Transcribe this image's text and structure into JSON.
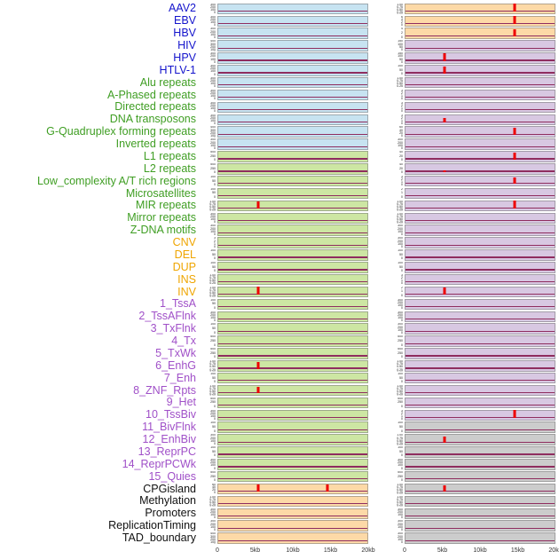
{
  "colors": {
    "groups": {
      "virus": "#1414cc",
      "repeat": "#3f9e23",
      "sv": "#efa500",
      "state": "#a050c8",
      "other": "#111111"
    },
    "panels": {
      "blue": "#c7e3f1",
      "green": "#cde6a3",
      "peach": "#fdd9a7",
      "lavender": "#d8c8e2",
      "gray": "#cccccc"
    },
    "baseline": "#8f2d5f",
    "spike": "#ee0000"
  },
  "chart_data": {
    "type": "line",
    "layout": "small multiples: 44 feature rows x 2 columns, signal around region 0-20kb",
    "x_axis": {
      "ticks": [
        "0",
        "5kb",
        "10kb",
        "15kb",
        "20kb"
      ],
      "range_kb": [
        0,
        20
      ]
    },
    "tick_sets": {
      "t300": [
        "300",
        "200",
        "100",
        "0"
      ],
      "t400": [
        "400",
        "300",
        "200",
        "100",
        "0"
      ],
      "t500": [
        "500",
        "250",
        "0"
      ],
      "t150": [
        "150",
        "100",
        "50",
        "0"
      ],
      "t100": [
        "100",
        "50",
        "0"
      ],
      "t60": [
        "60",
        "40",
        "20",
        "0"
      ],
      "t40": [
        "40",
        "20",
        "0"
      ],
      "t642": [
        "6",
        "4",
        "2",
        "0"
      ],
      "t420": [
        "4",
        "2",
        "0"
      ],
      "t321": [
        "3",
        "2",
        "1",
        "0"
      ],
      "t21": [
        "2",
        "1",
        "0"
      ],
      "tfrac": [
        "1.00",
        "0.75",
        "0.50",
        "0.25",
        "0.00"
      ]
    },
    "rows": [
      {
        "label": "AAV2",
        "group": "virus",
        "left": {
          "bg": "blue",
          "yticks": "t300",
          "spikes": []
        },
        "right": {
          "bg": "peach",
          "yticks": "tfrac",
          "spikes": [
            {
              "x_kb": 14.7,
              "h": 0.9
            }
          ]
        }
      },
      {
        "label": "EBV",
        "group": "virus",
        "left": {
          "bg": "blue",
          "yticks": "t300",
          "spikes": []
        },
        "right": {
          "bg": "peach",
          "yticks": "t642",
          "spikes": [
            {
              "x_kb": 14.7,
              "h": 0.85
            }
          ]
        }
      },
      {
        "label": "HBV",
        "group": "virus",
        "left": {
          "bg": "blue",
          "yticks": "t300",
          "spikes": []
        },
        "right": {
          "bg": "peach",
          "yticks": "t420",
          "spikes": [
            {
              "x_kb": 14.7,
              "h": 0.8
            }
          ]
        }
      },
      {
        "label": "HIV",
        "group": "virus",
        "left": {
          "bg": "blue",
          "yticks": "t400",
          "spikes": []
        },
        "right": {
          "bg": "lavender",
          "yticks": "t150",
          "spikes": []
        }
      },
      {
        "label": "HPV",
        "group": "virus",
        "left": {
          "bg": "blue",
          "yticks": "t300",
          "spikes": []
        },
        "right": {
          "bg": "lavender",
          "yticks": "t150",
          "spikes": [
            {
              "x_kb": 5.2,
              "h": 0.85
            }
          ]
        }
      },
      {
        "label": "HTLV-1",
        "group": "virus",
        "left": {
          "bg": "blue",
          "yticks": "t300",
          "spikes": []
        },
        "right": {
          "bg": "lavender",
          "yticks": "t100",
          "spikes": [
            {
              "x_kb": 5.2,
              "h": 0.75
            }
          ]
        }
      },
      {
        "label": "Alu repeats",
        "group": "repeat",
        "left": {
          "bg": "blue",
          "yticks": "t300",
          "spikes": []
        },
        "right": {
          "bg": "lavender",
          "yticks": "tfrac",
          "spikes": []
        }
      },
      {
        "label": "A-Phased repeats",
        "group": "repeat",
        "left": {
          "bg": "blue",
          "yticks": "t300",
          "spikes": []
        },
        "right": {
          "bg": "lavender",
          "yticks": "t321",
          "spikes": []
        }
      },
      {
        "label": "Directed repeats",
        "group": "repeat",
        "left": {
          "bg": "blue",
          "yticks": "t300",
          "spikes": []
        },
        "right": {
          "bg": "lavender",
          "yticks": "t321",
          "spikes": []
        }
      },
      {
        "label": "DNA transposons",
        "group": "repeat",
        "left": {
          "bg": "blue",
          "yticks": "t300",
          "spikes": []
        },
        "right": {
          "bg": "lavender",
          "yticks": "t321",
          "spikes": [
            {
              "x_kb": 5.2,
              "h": 0.45
            }
          ]
        }
      },
      {
        "label": "G-Quadruplex forming repeats",
        "group": "repeat",
        "left": {
          "bg": "blue",
          "yticks": "t400",
          "spikes": []
        },
        "right": {
          "bg": "lavender",
          "yticks": "t60",
          "spikes": [
            {
              "x_kb": 14.7,
              "h": 0.8
            }
          ]
        }
      },
      {
        "label": "Inverted repeats",
        "group": "repeat",
        "left": {
          "bg": "blue",
          "yticks": "t300",
          "spikes": []
        },
        "right": {
          "bg": "lavender",
          "yticks": "t300",
          "spikes": []
        }
      },
      {
        "label": "L1 repeats",
        "group": "repeat",
        "left": {
          "bg": "green",
          "yticks": "t500",
          "spikes": []
        },
        "right": {
          "bg": "lavender",
          "yticks": "t40",
          "spikes": [
            {
              "x_kb": 14.7,
              "h": 0.7
            }
          ]
        }
      },
      {
        "label": "L2 repeats",
        "group": "repeat",
        "left": {
          "bg": "green",
          "yticks": "t500",
          "spikes": []
        },
        "right": {
          "bg": "lavender",
          "yticks": "t40",
          "spikes": [
            {
              "x_kb": 5.2,
              "h": 0.15
            }
          ]
        }
      },
      {
        "label": "Low_complexity A/T rich regions",
        "group": "repeat",
        "left": {
          "bg": "green",
          "yticks": "t100",
          "spikes": []
        },
        "right": {
          "bg": "lavender",
          "yticks": "t321",
          "spikes": [
            {
              "x_kb": 14.7,
              "h": 0.75
            }
          ]
        }
      },
      {
        "label": "Microsatellites",
        "group": "repeat",
        "left": {
          "bg": "green",
          "yticks": "t100",
          "spikes": []
        },
        "right": {
          "bg": "lavender",
          "yticks": "t21",
          "spikes": []
        }
      },
      {
        "label": "MIR repeats",
        "group": "repeat",
        "left": {
          "bg": "green",
          "yticks": "tfrac",
          "spikes": [
            {
              "x_kb": 5.3,
              "h": 0.8
            }
          ]
        },
        "right": {
          "bg": "lavender",
          "yticks": "tfrac",
          "spikes": [
            {
              "x_kb": 14.7,
              "h": 0.85
            }
          ]
        }
      },
      {
        "label": "Mirror repeats",
        "group": "repeat",
        "left": {
          "bg": "green",
          "yticks": "t300",
          "spikes": []
        },
        "right": {
          "bg": "lavender",
          "yticks": "tfrac",
          "spikes": []
        }
      },
      {
        "label": "Z-DNA motifs",
        "group": "repeat",
        "left": {
          "bg": "green",
          "yticks": "t300",
          "spikes": []
        },
        "right": {
          "bg": "lavender",
          "yticks": "t300",
          "spikes": []
        }
      },
      {
        "label": "CNV",
        "group": "sv",
        "left": {
          "bg": "green",
          "yticks": "t321",
          "spikes": []
        },
        "right": {
          "bg": "lavender",
          "yticks": "t300",
          "spikes": []
        }
      },
      {
        "label": "DEL",
        "group": "sv",
        "left": {
          "bg": "green",
          "yticks": "t100",
          "spikes": []
        },
        "right": {
          "bg": "lavender",
          "yticks": "t100",
          "spikes": []
        }
      },
      {
        "label": "DUP",
        "group": "sv",
        "left": {
          "bg": "green",
          "yticks": "t100",
          "spikes": []
        },
        "right": {
          "bg": "lavender",
          "yticks": "t100",
          "spikes": []
        }
      },
      {
        "label": "INS",
        "group": "sv",
        "left": {
          "bg": "green",
          "yticks": "tfrac",
          "spikes": []
        },
        "right": {
          "bg": "lavender",
          "yticks": "t321",
          "spikes": []
        }
      },
      {
        "label": "INV",
        "group": "sv",
        "left": {
          "bg": "green",
          "yticks": "tfrac",
          "spikes": [
            {
              "x_kb": 5.3,
              "h": 0.85
            }
          ]
        },
        "right": {
          "bg": "lavender",
          "yticks": "t21",
          "spikes": [
            {
              "x_kb": 5.2,
              "h": 0.8
            }
          ]
        }
      },
      {
        "label": "1_TssA",
        "group": "state",
        "left": {
          "bg": "green",
          "yticks": "t100",
          "spikes": []
        },
        "right": {
          "bg": "lavender",
          "yticks": "t300",
          "spikes": []
        }
      },
      {
        "label": "2_TssAFlnk",
        "group": "state",
        "left": {
          "bg": "green",
          "yticks": "t300",
          "spikes": []
        },
        "right": {
          "bg": "lavender",
          "yticks": "t300",
          "spikes": []
        }
      },
      {
        "label": "3_TxFlnk",
        "group": "state",
        "left": {
          "bg": "green",
          "yticks": "t100",
          "spikes": []
        },
        "right": {
          "bg": "lavender",
          "yticks": "t300",
          "spikes": []
        }
      },
      {
        "label": "4_Tx",
        "group": "state",
        "left": {
          "bg": "green",
          "yticks": "t500",
          "spikes": []
        },
        "right": {
          "bg": "lavender",
          "yticks": "t500",
          "spikes": []
        }
      },
      {
        "label": "5_TxWk",
        "group": "state",
        "left": {
          "bg": "green",
          "yticks": "t500",
          "spikes": []
        },
        "right": {
          "bg": "lavender",
          "yticks": "t500",
          "spikes": []
        }
      },
      {
        "label": "6_EnhG",
        "group": "state",
        "left": {
          "bg": "green",
          "yticks": "tfrac",
          "spikes": [
            {
              "x_kb": 5.3,
              "h": 0.75
            }
          ]
        },
        "right": {
          "bg": "lavender",
          "yticks": "tfrac",
          "spikes": []
        }
      },
      {
        "label": "7_Enh",
        "group": "state",
        "left": {
          "bg": "green",
          "yticks": "t100",
          "spikes": []
        },
        "right": {
          "bg": "lavender",
          "yticks": "t100",
          "spikes": []
        }
      },
      {
        "label": "8_ZNF_Rpts",
        "group": "state",
        "left": {
          "bg": "green",
          "yticks": "tfrac",
          "spikes": [
            {
              "x_kb": 5.3,
              "h": 0.7
            }
          ]
        },
        "right": {
          "bg": "lavender",
          "yticks": "tfrac",
          "spikes": []
        }
      },
      {
        "label": "9_Het",
        "group": "state",
        "left": {
          "bg": "green",
          "yticks": "t500",
          "spikes": []
        },
        "right": {
          "bg": "lavender",
          "yticks": "t500",
          "spikes": []
        }
      },
      {
        "label": "10_TssBiv",
        "group": "state",
        "left": {
          "bg": "green",
          "yticks": "t300",
          "spikes": []
        },
        "right": {
          "bg": "lavender",
          "yticks": "t321",
          "spikes": [
            {
              "x_kb": 14.7,
              "h": 0.85
            }
          ]
        }
      },
      {
        "label": "11_BivFlnk",
        "group": "state",
        "left": {
          "bg": "green",
          "yticks": "t100",
          "spikes": []
        },
        "right": {
          "bg": "gray",
          "yticks": "t100",
          "spikes": []
        }
      },
      {
        "label": "12_EnhBiv",
        "group": "state",
        "left": {
          "bg": "green",
          "yticks": "t300",
          "spikes": []
        },
        "right": {
          "bg": "gray",
          "yticks": "tfrac",
          "spikes": [
            {
              "x_kb": 5.2,
              "h": 0.65
            }
          ]
        }
      },
      {
        "label": "13_ReprPC",
        "group": "state",
        "left": {
          "bg": "green",
          "yticks": "t100",
          "spikes": []
        },
        "right": {
          "bg": "gray",
          "yticks": "t100",
          "spikes": []
        }
      },
      {
        "label": "14_ReprPCWk",
        "group": "state",
        "left": {
          "bg": "green",
          "yticks": "t300",
          "spikes": []
        },
        "right": {
          "bg": "gray",
          "yticks": "t300",
          "spikes": []
        }
      },
      {
        "label": "15_Quies",
        "group": "state",
        "left": {
          "bg": "green",
          "yticks": "t500",
          "spikes": []
        },
        "right": {
          "bg": "gray",
          "yticks": "t500",
          "spikes": []
        }
      },
      {
        "label": "CPGisland",
        "group": "other",
        "left": {
          "bg": "peach",
          "yticks": "t60",
          "spikes": [
            {
              "x_kb": 5.3,
              "h": 0.8
            },
            {
              "x_kb": 14.7,
              "h": 0.75
            }
          ]
        },
        "right": {
          "bg": "gray",
          "yticks": "tfrac",
          "spikes": [
            {
              "x_kb": 5.2,
              "h": 0.7
            }
          ]
        }
      },
      {
        "label": "Methylation",
        "group": "other",
        "left": {
          "bg": "peach",
          "yticks": "tfrac",
          "spikes": []
        },
        "right": {
          "bg": "gray",
          "yticks": "tfrac",
          "spikes": []
        }
      },
      {
        "label": "Promoters",
        "group": "other",
        "left": {
          "bg": "peach",
          "yticks": "t300",
          "spikes": []
        },
        "right": {
          "bg": "gray",
          "yticks": "t300",
          "spikes": []
        }
      },
      {
        "label": "ReplicationTiming",
        "group": "other",
        "left": {
          "bg": "peach",
          "yticks": "t300",
          "spikes": []
        },
        "right": {
          "bg": "gray",
          "yticks": "t300",
          "spikes": []
        }
      },
      {
        "label": "TAD_boundary",
        "group": "other",
        "left": {
          "bg": "peach",
          "yticks": "t400",
          "spikes": []
        },
        "right": {
          "bg": "gray",
          "yticks": "t300",
          "spikes": []
        }
      }
    ]
  }
}
